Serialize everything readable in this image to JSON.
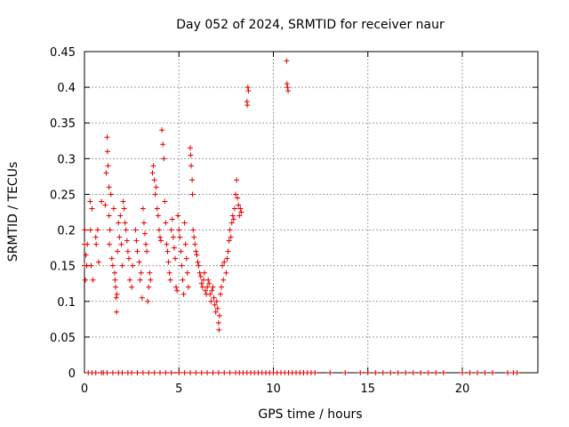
{
  "chart_data": {
    "type": "scatter",
    "title": "Day 052 of 2024, SRMTID for receiver naur",
    "xlabel": "GPS time / hours",
    "ylabel": "SRMTID / TECUs",
    "xlim": [
      0,
      24
    ],
    "ylim": [
      0,
      0.45
    ],
    "xticks": [
      0,
      5,
      10,
      15,
      20
    ],
    "yticks": [
      0,
      0.05,
      0.1,
      0.15,
      0.2,
      0.25,
      0.3,
      0.35,
      0.4,
      0.45
    ],
    "grid": true,
    "marker": "+",
    "color": "#e00000",
    "series": [
      {
        "points": [
          [
            0.0,
            0.18
          ],
          [
            0.0,
            0.15
          ],
          [
            0.02,
            0.2
          ],
          [
            0.05,
            0.13
          ],
          [
            0.08,
            0.165
          ],
          [
            0.12,
            0.15
          ],
          [
            0.15,
            0.18
          ],
          [
            0.3,
            0.24
          ],
          [
            0.32,
            0.2
          ],
          [
            0.35,
            0.15
          ],
          [
            0.4,
            0.23
          ],
          [
            0.45,
            0.13
          ],
          [
            0.6,
            0.19
          ],
          [
            0.62,
            0.18
          ],
          [
            0.7,
            0.2
          ],
          [
            0.75,
            0.155
          ],
          [
            0.9,
            0.24
          ],
          [
            1.1,
            0.235
          ],
          [
            1.15,
            0.28
          ],
          [
            1.2,
            0.33
          ],
          [
            1.22,
            0.31
          ],
          [
            1.25,
            0.29
          ],
          [
            1.3,
            0.26
          ],
          [
            1.3,
            0.22
          ],
          [
            1.32,
            0.18
          ],
          [
            1.35,
            0.2
          ],
          [
            1.4,
            0.25
          ],
          [
            1.45,
            0.16
          ],
          [
            1.5,
            0.15
          ],
          [
            1.55,
            0.23
          ],
          [
            1.6,
            0.14
          ],
          [
            1.62,
            0.13
          ],
          [
            1.65,
            0.12
          ],
          [
            1.68,
            0.105
          ],
          [
            1.7,
            0.085
          ],
          [
            1.72,
            0.11
          ],
          [
            1.75,
            0.17
          ],
          [
            1.8,
            0.21
          ],
          [
            1.85,
            0.19
          ],
          [
            1.9,
            0.22
          ],
          [
            1.95,
            0.18
          ],
          [
            2.0,
            0.15
          ],
          [
            2.05,
            0.24
          ],
          [
            2.1,
            0.23
          ],
          [
            2.15,
            0.21
          ],
          [
            2.2,
            0.2
          ],
          [
            2.25,
            0.185
          ],
          [
            2.3,
            0.17
          ],
          [
            2.35,
            0.16
          ],
          [
            2.4,
            0.13
          ],
          [
            2.5,
            0.12
          ],
          [
            2.55,
            0.15
          ],
          [
            2.7,
            0.2
          ],
          [
            2.75,
            0.185
          ],
          [
            2.8,
            0.17
          ],
          [
            2.9,
            0.155
          ],
          [
            2.95,
            0.13
          ],
          [
            3.0,
            0.14
          ],
          [
            3.05,
            0.105
          ],
          [
            3.1,
            0.23
          ],
          [
            3.15,
            0.21
          ],
          [
            3.2,
            0.195
          ],
          [
            3.25,
            0.18
          ],
          [
            3.3,
            0.17
          ],
          [
            3.35,
            0.1
          ],
          [
            3.4,
            0.12
          ],
          [
            3.45,
            0.14
          ],
          [
            3.5,
            0.13
          ],
          [
            3.6,
            0.28
          ],
          [
            3.65,
            0.29
          ],
          [
            3.7,
            0.27
          ],
          [
            3.75,
            0.25
          ],
          [
            3.8,
            0.26
          ],
          [
            3.85,
            0.23
          ],
          [
            3.9,
            0.22
          ],
          [
            3.95,
            0.2
          ],
          [
            4.0,
            0.19
          ],
          [
            4.05,
            0.185
          ],
          [
            4.1,
            0.34
          ],
          [
            4.15,
            0.32
          ],
          [
            4.2,
            0.3
          ],
          [
            4.25,
            0.24
          ],
          [
            4.3,
            0.21
          ],
          [
            4.35,
            0.18
          ],
          [
            4.4,
            0.17
          ],
          [
            4.45,
            0.155
          ],
          [
            4.5,
            0.14
          ],
          [
            4.55,
            0.13
          ],
          [
            4.6,
            0.2
          ],
          [
            4.65,
            0.215
          ],
          [
            4.7,
            0.19
          ],
          [
            4.75,
            0.175
          ],
          [
            4.8,
            0.16
          ],
          [
            4.85,
            0.12
          ],
          [
            4.9,
            0.115
          ],
          [
            4.95,
            0.22
          ],
          [
            5.0,
            0.2
          ],
          [
            5.05,
            0.19
          ],
          [
            5.1,
            0.17
          ],
          [
            5.15,
            0.15
          ],
          [
            5.2,
            0.13
          ],
          [
            5.25,
            0.11
          ],
          [
            5.3,
            0.21
          ],
          [
            5.35,
            0.18
          ],
          [
            5.4,
            0.16
          ],
          [
            5.45,
            0.14
          ],
          [
            5.5,
            0.12
          ],
          [
            5.6,
            0.315
          ],
          [
            5.62,
            0.305
          ],
          [
            5.65,
            0.29
          ],
          [
            5.7,
            0.27
          ],
          [
            5.72,
            0.25
          ],
          [
            5.75,
            0.2
          ],
          [
            5.8,
            0.19
          ],
          [
            5.85,
            0.18
          ],
          [
            5.9,
            0.17
          ],
          [
            5.95,
            0.165
          ],
          [
            6.0,
            0.155
          ],
          [
            6.05,
            0.15
          ],
          [
            6.1,
            0.14
          ],
          [
            6.15,
            0.135
          ],
          [
            6.2,
            0.125
          ],
          [
            6.25,
            0.12
          ],
          [
            6.3,
            0.13
          ],
          [
            6.35,
            0.14
          ],
          [
            6.4,
            0.115
          ],
          [
            6.45,
            0.11
          ],
          [
            6.5,
            0.12
          ],
          [
            6.55,
            0.13
          ],
          [
            6.6,
            0.125
          ],
          [
            6.65,
            0.11
          ],
          [
            6.7,
            0.1
          ],
          [
            6.75,
            0.115
          ],
          [
            6.8,
            0.12
          ],
          [
            6.85,
            0.105
          ],
          [
            6.9,
            0.095
          ],
          [
            6.95,
            0.085
          ],
          [
            7.0,
            0.1
          ],
          [
            7.05,
            0.09
          ],
          [
            7.1,
            0.07
          ],
          [
            7.12,
            0.06
          ],
          [
            7.15,
            0.08
          ],
          [
            7.2,
            0.11
          ],
          [
            7.25,
            0.12
          ],
          [
            7.3,
            0.15
          ],
          [
            7.35,
            0.13
          ],
          [
            7.4,
            0.155
          ],
          [
            7.5,
            0.14
          ],
          [
            7.55,
            0.16
          ],
          [
            7.6,
            0.17
          ],
          [
            7.65,
            0.185
          ],
          [
            7.7,
            0.2
          ],
          [
            7.75,
            0.19
          ],
          [
            7.8,
            0.21
          ],
          [
            7.85,
            0.22
          ],
          [
            7.9,
            0.215
          ],
          [
            7.95,
            0.23
          ],
          [
            8.0,
            0.25
          ],
          [
            8.05,
            0.27
          ],
          [
            8.1,
            0.245
          ],
          [
            8.15,
            0.235
          ],
          [
            8.2,
            0.22
          ],
          [
            8.25,
            0.23
          ],
          [
            8.3,
            0.225
          ],
          [
            8.6,
            0.38
          ],
          [
            8.62,
            0.375
          ],
          [
            8.65,
            0.4
          ],
          [
            8.68,
            0.395
          ],
          [
            10.7,
            0.437
          ],
          [
            10.72,
            0.405
          ],
          [
            10.75,
            0.4
          ],
          [
            10.78,
            0.395
          ],
          [
            0.2,
            0
          ],
          [
            0.4,
            0
          ],
          [
            0.6,
            0
          ],
          [
            0.9,
            0
          ],
          [
            1.0,
            0
          ],
          [
            1.2,
            0
          ],
          [
            1.5,
            0
          ],
          [
            1.8,
            0
          ],
          [
            2.0,
            0
          ],
          [
            2.3,
            0
          ],
          [
            2.5,
            0
          ],
          [
            2.8,
            0
          ],
          [
            3.1,
            0
          ],
          [
            3.4,
            0
          ],
          [
            3.7,
            0
          ],
          [
            4.0,
            0
          ],
          [
            4.3,
            0
          ],
          [
            4.6,
            0
          ],
          [
            5.0,
            0
          ],
          [
            5.3,
            0
          ],
          [
            5.6,
            0
          ],
          [
            5.9,
            0
          ],
          [
            6.2,
            0
          ],
          [
            6.5,
            0
          ],
          [
            6.8,
            0
          ],
          [
            7.1,
            0
          ],
          [
            7.4,
            0
          ],
          [
            7.7,
            0
          ],
          [
            8.0,
            0
          ],
          [
            8.2,
            0
          ],
          [
            8.4,
            0
          ],
          [
            8.6,
            0
          ],
          [
            8.8,
            0
          ],
          [
            9.0,
            0
          ],
          [
            9.2,
            0
          ],
          [
            9.4,
            0
          ],
          [
            9.6,
            0
          ],
          [
            9.8,
            0
          ],
          [
            10.0,
            0
          ],
          [
            10.2,
            0
          ],
          [
            10.4,
            0
          ],
          [
            10.6,
            0
          ],
          [
            10.8,
            0
          ],
          [
            11.0,
            0
          ],
          [
            11.2,
            0
          ],
          [
            11.4,
            0
          ],
          [
            11.6,
            0
          ],
          [
            11.8,
            0
          ],
          [
            12.0,
            0
          ],
          [
            12.2,
            0
          ],
          [
            13.0,
            0
          ],
          [
            13.8,
            0
          ],
          [
            14.6,
            0
          ],
          [
            15.0,
            0
          ],
          [
            15.4,
            0
          ],
          [
            15.8,
            0
          ],
          [
            16.2,
            0
          ],
          [
            16.6,
            0
          ],
          [
            17.0,
            0
          ],
          [
            17.4,
            0
          ],
          [
            17.8,
            0
          ],
          [
            18.2,
            0
          ],
          [
            18.6,
            0
          ],
          [
            19.0,
            0
          ],
          [
            20.0,
            0
          ],
          [
            20.4,
            0
          ],
          [
            20.8,
            0
          ],
          [
            21.2,
            0
          ],
          [
            21.6,
            0
          ],
          [
            22.4,
            0
          ],
          [
            22.7,
            0
          ],
          [
            22.9,
            0
          ]
        ]
      }
    ]
  }
}
